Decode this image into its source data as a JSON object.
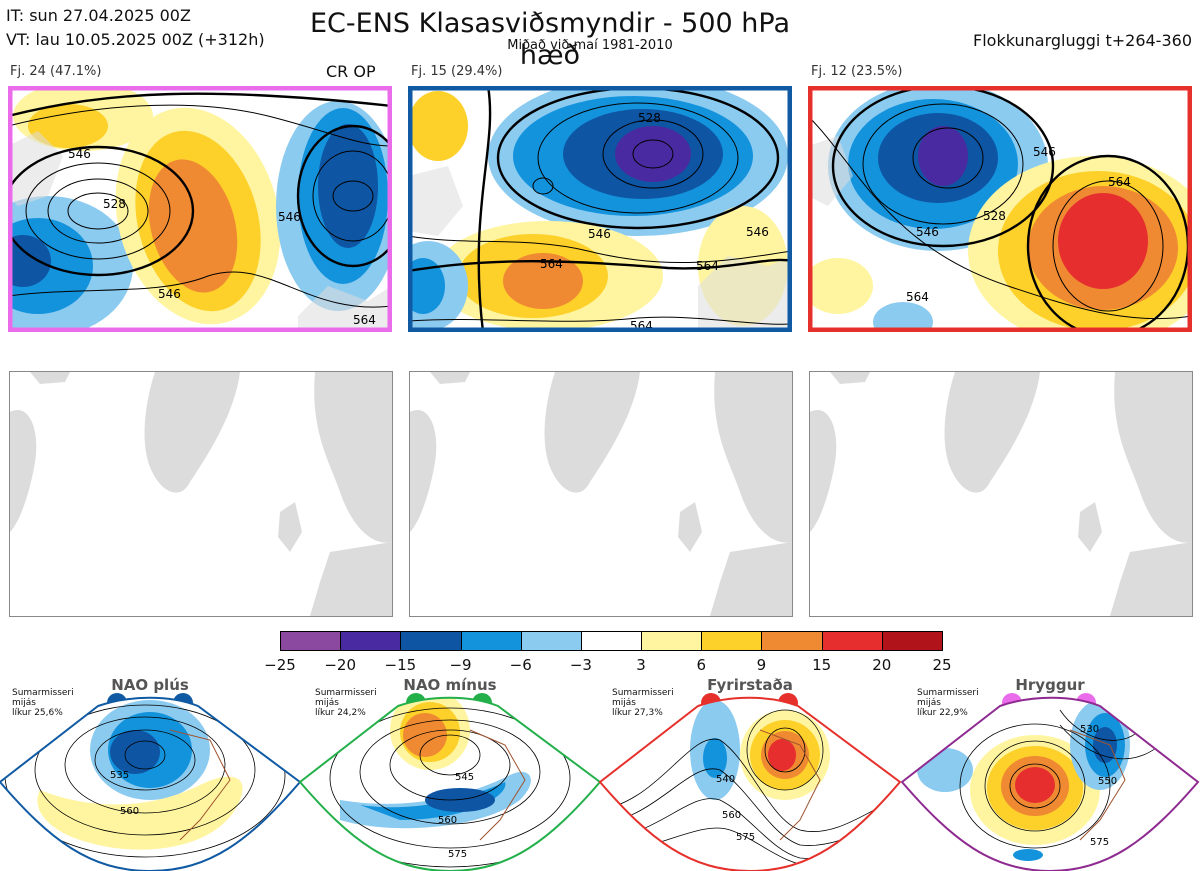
{
  "header": {
    "it": "IT: sun 27.04.2025 00Z",
    "vt": "VT: lau 10.05.2025 00Z  (+312h)",
    "title": "EC-ENS Klasasviðsmyndir - 500 hPa hæð",
    "subtitle": "Miðað við maí 1981-2010",
    "window": "Flokkunargluggi t+264-360"
  },
  "panels": [
    {
      "label": "Fj. 24 (47.1%)",
      "border_color": "#ea6cea",
      "op_label": "CR OP",
      "contour_labels": [
        "546",
        "528",
        "546",
        "546",
        "564"
      ]
    },
    {
      "label": "Fj. 15 (29.4%)",
      "border_color": "#0f5aa3",
      "op_label": "",
      "contour_labels": [
        "528",
        "546",
        "564",
        "564",
        "564",
        "546"
      ]
    },
    {
      "label": "Fj. 12 (23.5%)",
      "border_color": "#e6302b",
      "op_label": "",
      "contour_labels": [
        "528",
        "546",
        "564",
        "564",
        "546"
      ]
    }
  ],
  "colorbar": {
    "colors": [
      "#8b4aa0",
      "#4a2aa0",
      "#0e55a4",
      "#1493dd",
      "#8ccbf0",
      "#ffffff",
      "#fff5a0",
      "#fdd02a",
      "#f08a32",
      "#e62e2e",
      "#b0141a"
    ],
    "ticks": [
      "−25",
      "−20",
      "−15",
      "−9",
      "−6",
      "−3",
      "3",
      "6",
      "9",
      "15",
      "20",
      "25"
    ]
  },
  "regimes": [
    {
      "name": "NAO plús",
      "note_line1": "Sumarmisseri",
      "note_line2": "mijás",
      "note_line3": "líkur 25,6%",
      "dot_color": "#0f5aa3",
      "frame_color": "#0f5aa3",
      "contour_labels": [
        "535",
        "560"
      ]
    },
    {
      "name": "NAO mínus",
      "note_line1": "Sumarmisseri",
      "note_line2": "mijás",
      "note_line3": "líkur 24,2%",
      "dot_color": "#23b04a",
      "frame_color": "#23b04a",
      "contour_labels": [
        "545",
        "560",
        "575"
      ]
    },
    {
      "name": "Fyrirstaða",
      "note_line1": "Sumarmisseri",
      "note_line2": "mijás",
      "note_line3": "líkur 27,3%",
      "dot_color": "#e6302b",
      "frame_color": "#e6302b",
      "contour_labels": [
        "540",
        "560",
        "575"
      ]
    },
    {
      "name": "Hryggur",
      "note_line1": "Sumarmisseri",
      "note_line2": "mijás",
      "note_line3": "líkur 22,9%",
      "dot_color": "#ea6cea",
      "frame_color": "#8e2a90",
      "contour_labels": [
        "530",
        "550",
        "575"
      ]
    }
  ]
}
